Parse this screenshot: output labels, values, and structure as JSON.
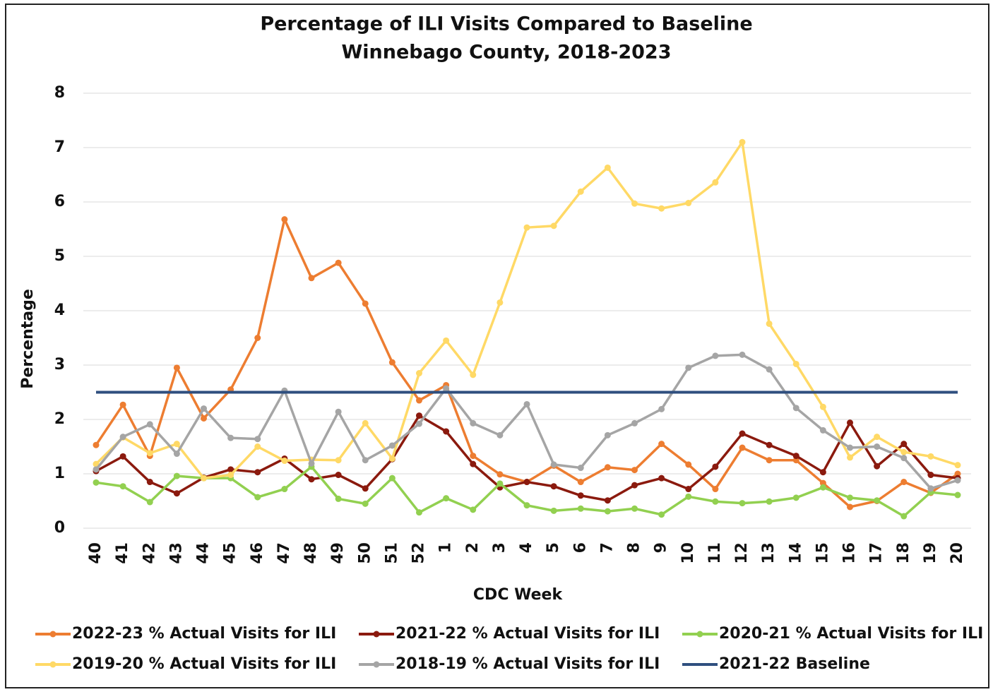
{
  "chart_data": {
    "type": "line",
    "title": "Percentage of ILI Visits Compared to Baseline",
    "subtitle": "Winnebago County, 2018-2023",
    "x_label": "CDC Week",
    "y_label": "Percentage",
    "categories": [
      "40",
      "41",
      "42",
      "43",
      "44",
      "45",
      "46",
      "47",
      "48",
      "49",
      "50",
      "51",
      "52",
      "1",
      "2",
      "3",
      "4",
      "5",
      "6",
      "7",
      "8",
      "9",
      "10",
      "11",
      "12",
      "13",
      "14",
      "15",
      "16",
      "17",
      "18",
      "19",
      "20"
    ],
    "ylim": [
      0,
      8
    ],
    "yticks": [
      0,
      1,
      2,
      3,
      4,
      5,
      6,
      7,
      8
    ],
    "grid": true,
    "series": [
      {
        "name": "2022-23 % Actual Visits for ILI",
        "color": "#ed7d31",
        "values": [
          1.53,
          2.27,
          1.33,
          2.95,
          2.02,
          2.55,
          3.5,
          5.68,
          4.6,
          4.88,
          4.13,
          3.05,
          2.35,
          2.63,
          1.33,
          0.99,
          0.85,
          1.15,
          0.85,
          1.12,
          1.07,
          1.55,
          1.17,
          0.72,
          1.48,
          1.25,
          1.25,
          0.83,
          0.39,
          0.5,
          0.85,
          0.65,
          1.0
        ]
      },
      {
        "name": "2021-22 % Actual Visits for ILI",
        "color": "#8b1a0e",
        "values": [
          1.05,
          1.32,
          0.85,
          0.64,
          0.93,
          1.08,
          1.03,
          1.28,
          0.9,
          0.98,
          0.73,
          1.27,
          2.07,
          1.78,
          1.18,
          0.75,
          0.85,
          0.77,
          0.6,
          0.51,
          0.79,
          0.92,
          0.72,
          1.13,
          1.74,
          1.53,
          1.33,
          1.03,
          1.94,
          1.14,
          1.55,
          0.98,
          0.92
        ]
      },
      {
        "name": "2020-21 % Actual Visits for ILI",
        "color": "#92d050",
        "values": [
          0.84,
          0.77,
          0.48,
          0.96,
          0.92,
          0.92,
          0.57,
          0.72,
          1.13,
          0.54,
          0.45,
          0.92,
          0.29,
          0.55,
          0.34,
          0.82,
          0.42,
          0.32,
          0.36,
          0.31,
          0.36,
          0.25,
          0.58,
          0.49,
          0.46,
          0.49,
          0.56,
          0.75,
          0.56,
          0.51,
          0.22,
          0.66,
          0.61
        ]
      },
      {
        "name": "2019-20 % Actual Visits for ILI",
        "color": "#ffd966",
        "values": [
          1.18,
          1.67,
          1.38,
          1.55,
          0.92,
          0.98,
          1.5,
          1.24,
          1.26,
          1.25,
          1.93,
          1.28,
          2.85,
          3.45,
          2.82,
          4.15,
          5.53,
          5.56,
          6.19,
          6.63,
          5.97,
          5.88,
          5.98,
          6.36,
          7.1,
          3.76,
          3.02,
          2.23,
          1.3,
          1.68,
          1.4,
          1.32,
          1.16
        ]
      },
      {
        "name": "2018-19 % Actual Visits for ILI",
        "color": "#a5a5a5",
        "values": [
          1.08,
          1.68,
          1.91,
          1.37,
          2.2,
          1.66,
          1.64,
          2.53,
          1.19,
          2.14,
          1.25,
          1.52,
          1.92,
          2.57,
          1.93,
          1.71,
          2.28,
          1.17,
          1.11,
          1.71,
          1.93,
          2.19,
          2.95,
          3.17,
          3.19,
          2.92,
          2.21,
          1.8,
          1.48,
          1.5,
          1.29,
          0.73,
          0.88
        ]
      },
      {
        "name": "2021-22 Baseline",
        "color": "#2f4f7f",
        "markers": false,
        "values": [
          2.5,
          2.5,
          2.5,
          2.5,
          2.5,
          2.5,
          2.5,
          2.5,
          2.5,
          2.5,
          2.5,
          2.5,
          2.5,
          2.5,
          2.5,
          2.5,
          2.5,
          2.5,
          2.5,
          2.5,
          2.5,
          2.5,
          2.5,
          2.5,
          2.5,
          2.5,
          2.5,
          2.5,
          2.5,
          2.5,
          2.5,
          2.5,
          2.5
        ]
      }
    ]
  }
}
